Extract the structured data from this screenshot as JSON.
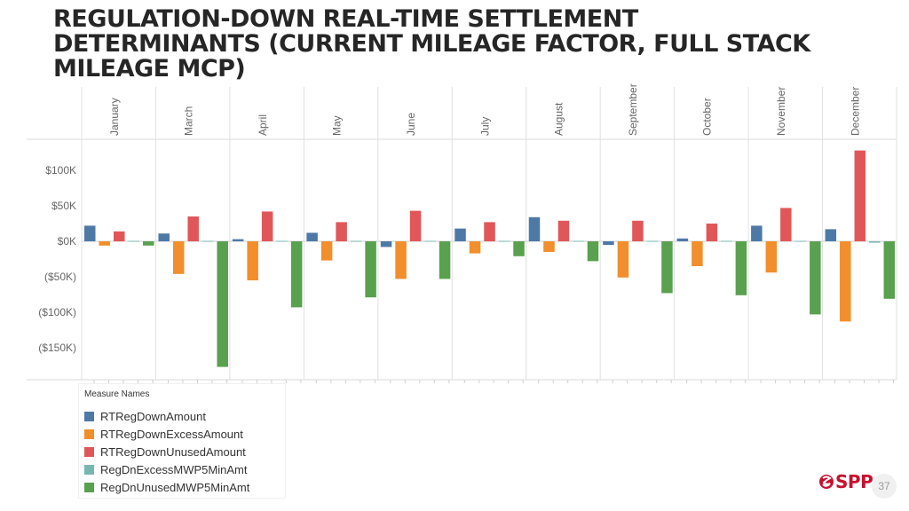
{
  "slide": {
    "title": "REGULATION-DOWN REAL-TIME SETTLEMENT\nDETERMINANTS (CURRENT MILEAGE FACTOR, FULL STACK\nMILEAGE MCP)",
    "page_number": "37",
    "logo_text": "SPP"
  },
  "legend": {
    "title": "Measure Names",
    "items": [
      {
        "label": "RTRegDownAmount",
        "color": "#4e79a7"
      },
      {
        "label": "RTRegDownExcessAmount",
        "color": "#f28e2b"
      },
      {
        "label": "RTRegDownUnusedAmount",
        "color": "#e15759"
      },
      {
        "label": "RegDnExcessMWP5MinAmt",
        "color": "#76b7b2"
      },
      {
        "label": "RegDnUnusedMWP5MinAmt",
        "color": "#59a14f"
      }
    ]
  },
  "chart_data": {
    "type": "bar",
    "categories": [
      "January",
      "March",
      "April",
      "May",
      "June",
      "July",
      "August",
      "September",
      "October",
      "November",
      "December"
    ],
    "series": [
      {
        "name": "RTRegDownAmount",
        "color": "#4e79a7",
        "values": [
          22000,
          11000,
          3000,
          12000,
          -8000,
          18000,
          34000,
          -5000,
          4000,
          22000,
          17000
        ]
      },
      {
        "name": "RTRegDownExcessAmount",
        "color": "#f28e2b",
        "values": [
          -6000,
          -46000,
          -55000,
          -27000,
          -53000,
          -17000,
          -15000,
          -51000,
          -35000,
          -44000,
          -113000
        ]
      },
      {
        "name": "RTRegDownUnusedAmount",
        "color": "#e15759",
        "values": [
          14000,
          35000,
          42000,
          27000,
          43000,
          27000,
          29000,
          29000,
          25000,
          47000,
          128000
        ]
      },
      {
        "name": "RegDnExcessMWP5MinAmt",
        "color": "#76b7b2",
        "values": [
          0,
          0,
          0,
          0,
          0,
          0,
          0,
          0,
          0,
          0,
          -2000
        ]
      },
      {
        "name": "RegDnUnusedMWP5MinAmt",
        "color": "#59a14f",
        "values": [
          -6000,
          -177000,
          -93000,
          -79000,
          -53000,
          -21000,
          -28000,
          -73000,
          -76000,
          -103000,
          -81000
        ]
      }
    ],
    "yticks": [
      100000,
      50000,
      0,
      -50000,
      -100000,
      -150000
    ],
    "ytick_labels": [
      "$100K",
      "$50K",
      "$0K",
      "($50K)",
      "($100K)",
      "($150K)"
    ],
    "ylim": [
      -190000,
      140000
    ],
    "legend_position": "bottom-left"
  }
}
